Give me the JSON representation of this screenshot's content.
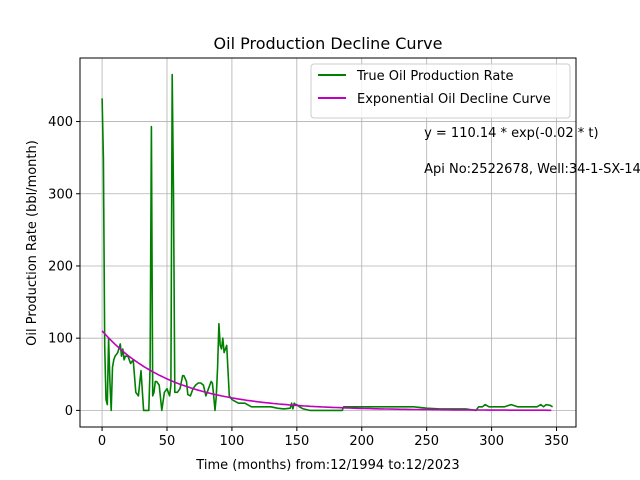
{
  "chart_data": {
    "type": "line",
    "title": "Oil Production Decline Curve",
    "xlabel": "Time (months) from:12/1994 to:12/2023",
    "ylabel": "Oil Production Rate (bbl/month)",
    "xlim": [
      -17,
      365
    ],
    "ylim": [
      -23,
      488
    ],
    "xticks": [
      0,
      50,
      100,
      150,
      200,
      250,
      300,
      350
    ],
    "yticks": [
      0,
      100,
      200,
      300,
      400
    ],
    "grid": true,
    "legend_position": "top-right",
    "annotations": [
      {
        "text": "y = 110.14 * exp(-0.02 * t)",
        "x": 248,
        "y": 385
      },
      {
        "text": "Api No:2522678, Well:34-1-SX-14",
        "x": 248,
        "y": 335
      }
    ],
    "series": [
      {
        "name": "True Oil Production Rate",
        "color": "#008000",
        "x": [
          0,
          1,
          2,
          3,
          4,
          5,
          6,
          7,
          8,
          9,
          10,
          12,
          14,
          15,
          16,
          17,
          18,
          20,
          22,
          24,
          26,
          28,
          30,
          32,
          34,
          36,
          37,
          38,
          39,
          40,
          41,
          42,
          44,
          46,
          48,
          50,
          52,
          53,
          54,
          55,
          56,
          58,
          60,
          62,
          63,
          65,
          66,
          68,
          70,
          72,
          74,
          76,
          78,
          80,
          82,
          84,
          85,
          86,
          87,
          88,
          89,
          90,
          91,
          92,
          93,
          94,
          96,
          98,
          100,
          105,
          110,
          115,
          120,
          125,
          130,
          135,
          140,
          145,
          146,
          147,
          148,
          149,
          150,
          152,
          155,
          160,
          170,
          180,
          185,
          186,
          190,
          200,
          210,
          220,
          230,
          240,
          250,
          260,
          270,
          280,
          288,
          290,
          291,
          293,
          295,
          298,
          300,
          302,
          305,
          308,
          310,
          315,
          320,
          325,
          330,
          332,
          335,
          338,
          340,
          342,
          345,
          347
        ],
        "y": [
          432,
          350,
          90,
          15,
          8,
          100,
          40,
          0,
          60,
          70,
          75,
          80,
          92,
          75,
          85,
          70,
          75,
          75,
          65,
          70,
          25,
          20,
          55,
          0,
          0,
          0,
          60,
          393,
          20,
          25,
          40,
          40,
          35,
          0,
          25,
          30,
          20,
          35,
          465,
          300,
          25,
          25,
          30,
          48,
          48,
          40,
          22,
          20,
          30,
          35,
          38,
          38,
          35,
          20,
          30,
          40,
          38,
          20,
          0,
          20,
          60,
          120,
          90,
          85,
          100,
          80,
          90,
          20,
          15,
          10,
          10,
          5,
          5,
          5,
          5,
          3,
          2,
          3,
          10,
          2,
          10,
          8,
          8,
          5,
          2,
          0,
          0,
          0,
          0,
          5,
          5,
          5,
          5,
          5,
          5,
          5,
          3,
          2,
          2,
          2,
          0,
          5,
          5,
          5,
          8,
          5,
          5,
          5,
          5,
          5,
          5,
          8,
          5,
          5,
          5,
          5,
          5,
          8,
          5,
          8,
          7,
          5
        ]
      },
      {
        "name": "Exponential Oil Decline Curve",
        "color": "#BF00BF",
        "equation": "y = 110.14 * exp(-0.02 * t)",
        "a": 110.14,
        "b": -0.0185,
        "x_range": [
          0,
          347
        ]
      }
    ]
  }
}
